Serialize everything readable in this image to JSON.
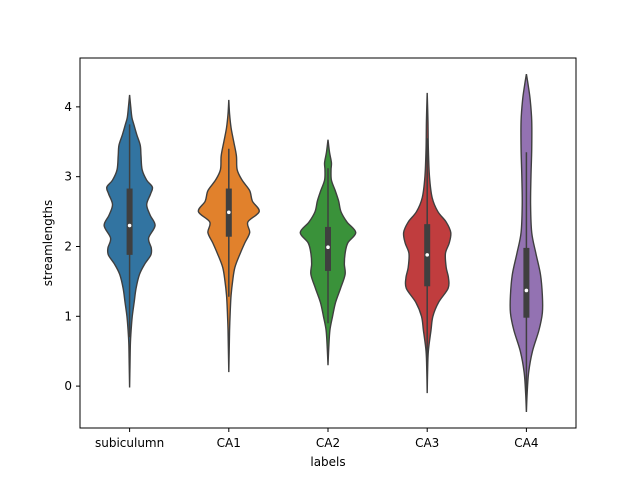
{
  "chart_data": {
    "type": "violin",
    "xlabel": "labels",
    "ylabel": "streamlengths",
    "categories": [
      "subiculumn",
      "CA1",
      "CA2",
      "CA3",
      "CA4"
    ],
    "ylim": [
      -0.6,
      4.7
    ],
    "yticks": [
      0,
      1,
      2,
      3,
      4
    ],
    "grid": false,
    "violins": [
      {
        "category": "subiculumn",
        "color": "#3274a1",
        "min": -0.02,
        "max": 4.17,
        "whisker_low": 0.7,
        "whisker_high": 3.75,
        "q1": 1.88,
        "median": 2.3,
        "q3": 2.83,
        "profile": [
          [
            -0.02,
            0
          ],
          [
            0.3,
            0.01
          ],
          [
            0.6,
            0.02
          ],
          [
            0.8,
            0.04
          ],
          [
            1.0,
            0.07
          ],
          [
            1.2,
            0.12
          ],
          [
            1.4,
            0.17
          ],
          [
            1.6,
            0.26
          ],
          [
            1.75,
            0.4
          ],
          [
            1.88,
            0.56
          ],
          [
            1.98,
            0.57
          ],
          [
            2.12,
            0.5
          ],
          [
            2.3,
            0.67
          ],
          [
            2.45,
            0.54
          ],
          [
            2.6,
            0.45
          ],
          [
            2.75,
            0.55
          ],
          [
            2.85,
            0.6
          ],
          [
            2.95,
            0.45
          ],
          [
            3.1,
            0.33
          ],
          [
            3.3,
            0.3
          ],
          [
            3.45,
            0.28
          ],
          [
            3.6,
            0.19
          ],
          [
            3.75,
            0.11
          ],
          [
            3.85,
            0.06
          ],
          [
            4.0,
            0.03
          ],
          [
            4.17,
            0
          ]
        ]
      },
      {
        "category": "CA1",
        "color": "#e1812c",
        "min": 0.2,
        "max": 4.1,
        "whisker_low": 1.28,
        "whisker_high": 3.4,
        "q1": 2.14,
        "median": 2.49,
        "q3": 2.83,
        "profile": [
          [
            0.2,
            0
          ],
          [
            0.5,
            0.01
          ],
          [
            0.8,
            0.02
          ],
          [
            1.1,
            0.04
          ],
          [
            1.3,
            0.06
          ],
          [
            1.5,
            0.1
          ],
          [
            1.7,
            0.16
          ],
          [
            1.9,
            0.3
          ],
          [
            2.05,
            0.42
          ],
          [
            2.2,
            0.55
          ],
          [
            2.35,
            0.5
          ],
          [
            2.5,
            0.8
          ],
          [
            2.65,
            0.62
          ],
          [
            2.8,
            0.55
          ],
          [
            2.95,
            0.35
          ],
          [
            3.1,
            0.22
          ],
          [
            3.3,
            0.2
          ],
          [
            3.5,
            0.13
          ],
          [
            3.7,
            0.06
          ],
          [
            3.9,
            0.02
          ],
          [
            4.1,
            0
          ]
        ]
      },
      {
        "category": "CA2",
        "color": "#3a923a",
        "min": 0.3,
        "max": 3.53,
        "whisker_low": 0.9,
        "whisker_high": 3.12,
        "q1": 1.65,
        "median": 1.99,
        "q3": 2.28,
        "profile": [
          [
            0.3,
            0
          ],
          [
            0.55,
            0.02
          ],
          [
            0.8,
            0.05
          ],
          [
            1.0,
            0.12
          ],
          [
            1.2,
            0.2
          ],
          [
            1.4,
            0.33
          ],
          [
            1.6,
            0.45
          ],
          [
            1.75,
            0.43
          ],
          [
            1.9,
            0.45
          ],
          [
            2.05,
            0.52
          ],
          [
            2.2,
            0.73
          ],
          [
            2.35,
            0.5
          ],
          [
            2.5,
            0.34
          ],
          [
            2.65,
            0.28
          ],
          [
            2.8,
            0.19
          ],
          [
            2.95,
            0.09
          ],
          [
            3.1,
            0.08
          ],
          [
            3.2,
            0.09
          ],
          [
            3.35,
            0.04
          ],
          [
            3.53,
            0
          ]
        ]
      },
      {
        "category": "CA3",
        "color": "#c03d3e",
        "min": -0.1,
        "max": 4.2,
        "whisker_low": 0.35,
        "whisker_high": 3.55,
        "q1": 1.43,
        "median": 1.88,
        "q3": 2.32,
        "profile": [
          [
            -0.1,
            0
          ],
          [
            0.2,
            0.01
          ],
          [
            0.5,
            0.03
          ],
          [
            0.8,
            0.1
          ],
          [
            1.0,
            0.15
          ],
          [
            1.2,
            0.3
          ],
          [
            1.4,
            0.55
          ],
          [
            1.55,
            0.56
          ],
          [
            1.7,
            0.5
          ],
          [
            1.9,
            0.48
          ],
          [
            2.05,
            0.58
          ],
          [
            2.2,
            0.62
          ],
          [
            2.35,
            0.5
          ],
          [
            2.5,
            0.28
          ],
          [
            2.7,
            0.13
          ],
          [
            3.0,
            0.06
          ],
          [
            3.4,
            0.03
          ],
          [
            3.8,
            0.02
          ],
          [
            4.2,
            0
          ]
        ]
      },
      {
        "category": "CA4",
        "color": "#9372b2",
        "min": -0.37,
        "max": 4.47,
        "whisker_low": -0.15,
        "whisker_high": 3.35,
        "q1": 0.98,
        "median": 1.37,
        "q3": 1.98,
        "profile": [
          [
            -0.37,
            0
          ],
          [
            -0.1,
            0.02
          ],
          [
            0.2,
            0.06
          ],
          [
            0.5,
            0.16
          ],
          [
            0.8,
            0.33
          ],
          [
            1.05,
            0.42
          ],
          [
            1.3,
            0.42
          ],
          [
            1.6,
            0.37
          ],
          [
            1.9,
            0.25
          ],
          [
            2.2,
            0.14
          ],
          [
            2.6,
            0.11
          ],
          [
            3.0,
            0.12
          ],
          [
            3.4,
            0.14
          ],
          [
            3.8,
            0.14
          ],
          [
            4.1,
            0.1
          ],
          [
            4.3,
            0.05
          ],
          [
            4.47,
            0
          ]
        ]
      }
    ]
  }
}
